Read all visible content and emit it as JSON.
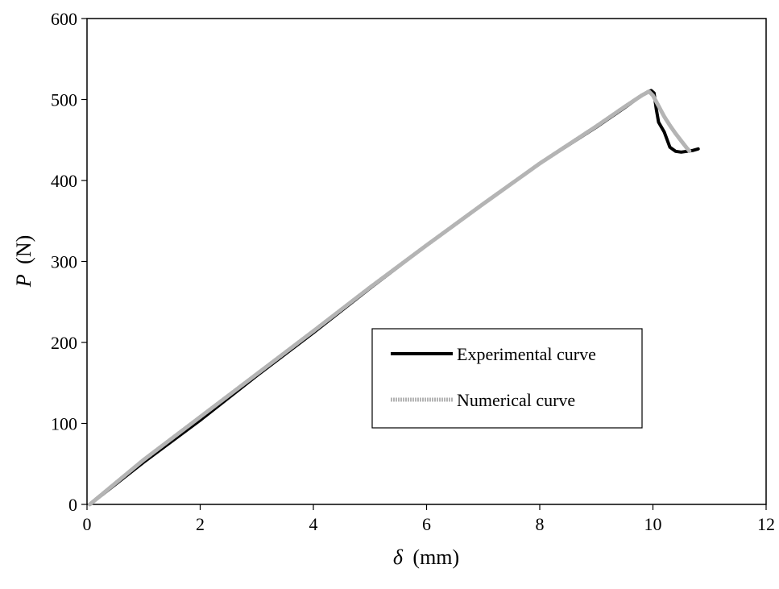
{
  "chart_data": {
    "type": "line",
    "title": "",
    "xlabel": {
      "symbol": "δ",
      "unit": "(mm)"
    },
    "ylabel": {
      "symbol": "P",
      "unit": "(N)"
    },
    "xlim": [
      0,
      12
    ],
    "ylim": [
      0,
      600
    ],
    "xticks": [
      "0",
      "2",
      "4",
      "6",
      "8",
      "10",
      "12"
    ],
    "yticks": [
      "0",
      "100",
      "200",
      "300",
      "400",
      "500",
      "600"
    ],
    "grid": false,
    "legend_position": "center-right",
    "series": [
      {
        "name": "Experimental curve",
        "color": "#000000",
        "x": [
          0.05,
          1.0,
          2.0,
          3.0,
          4.0,
          5.0,
          6.0,
          7.0,
          8.0,
          9.0,
          9.5,
          9.8,
          9.92,
          9.97,
          10.02,
          10.06,
          10.1,
          10.2,
          10.3,
          10.4,
          10.5,
          10.6,
          10.7,
          10.8
        ],
        "y": [
          0,
          52,
          104,
          159,
          212,
          267,
          320,
          371,
          421,
          466,
          490,
          505,
          510,
          511,
          508,
          488,
          472,
          460,
          441,
          436,
          435,
          436,
          437,
          439
        ]
      },
      {
        "name": "Numerical curve",
        "color": "#b4b4b4",
        "x": [
          0.05,
          1.0,
          2.0,
          3.0,
          4.0,
          5.0,
          6.0,
          7.0,
          8.0,
          9.0,
          9.5,
          9.8,
          9.93,
          10.0,
          10.1,
          10.2,
          10.3,
          10.4,
          10.5,
          10.6,
          10.65
        ],
        "y": [
          0,
          55,
          108,
          161,
          214,
          268,
          320,
          371,
          421,
          467,
          491,
          505,
          510,
          505,
          492,
          479,
          468,
          458,
          449,
          440,
          436
        ]
      }
    ]
  }
}
